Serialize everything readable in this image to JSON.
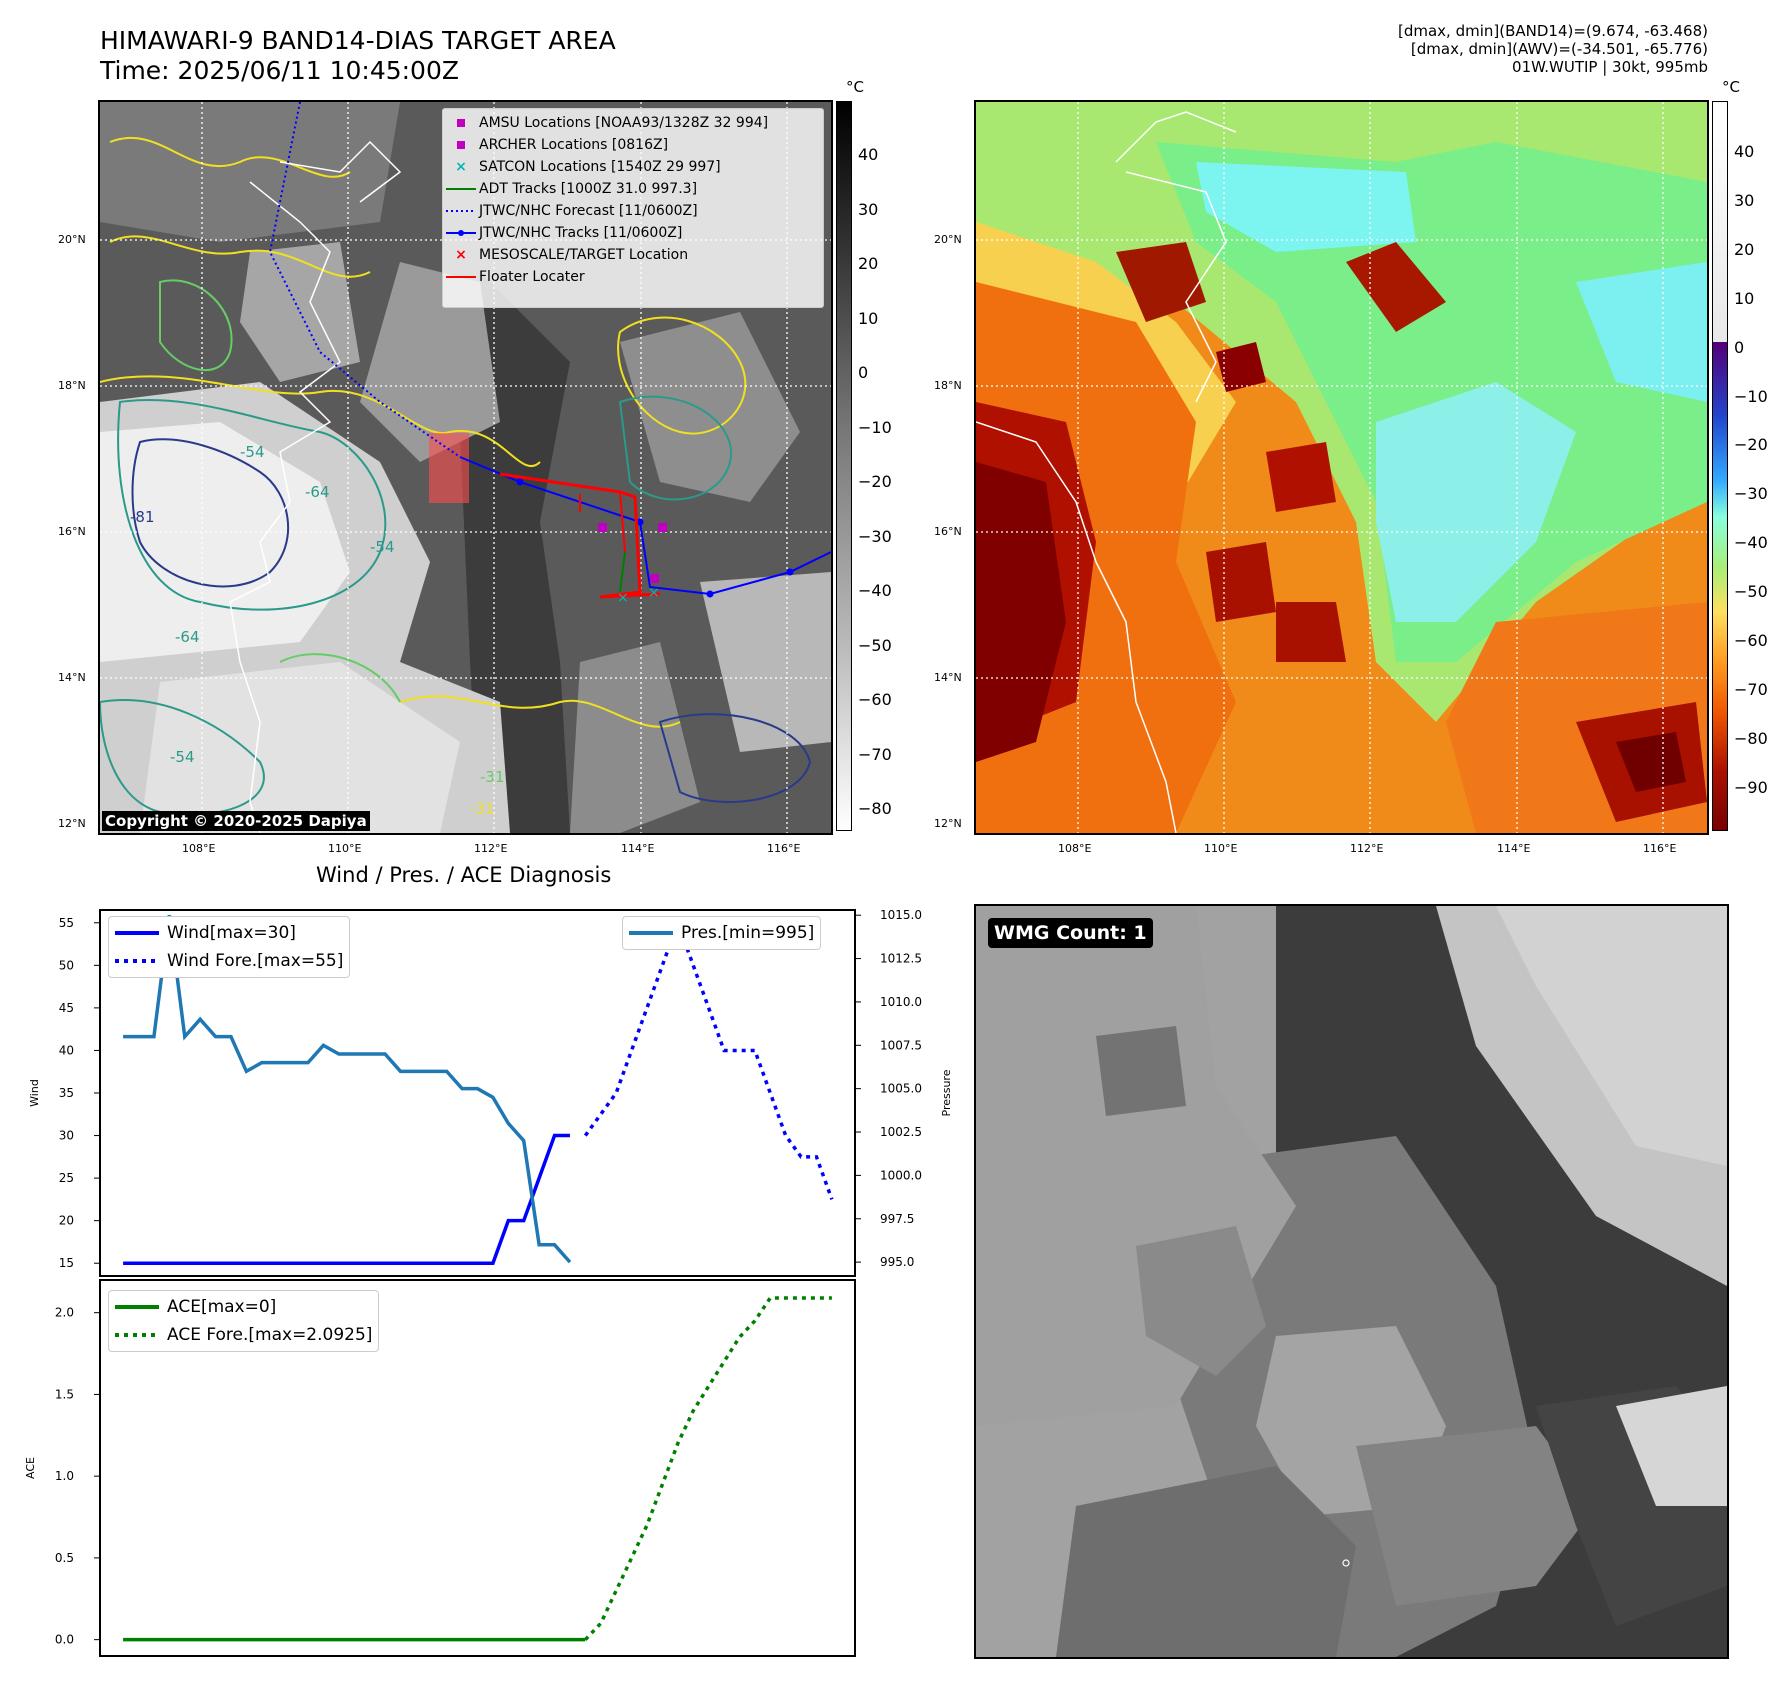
{
  "header": {
    "title": "HIMAWARI-9 BAND14-DIAS TARGET AREA",
    "time": "Time: 2025/06/11 10:45:00Z",
    "info_line1": "[dmax, dmin](BAND14)=(9.674, -63.468)",
    "info_line2": "[dmax, dmin](AWV)=(-34.501, -65.776)",
    "info_line3": "01W.WUTIP | 30kt, 995mb"
  },
  "map_left": {
    "lat_labels": [
      "20°N",
      "18°N",
      "16°N",
      "14°N",
      "12°N"
    ],
    "lon_labels": [
      "108°E",
      "110°E",
      "112°E",
      "114°E",
      "116°E"
    ],
    "copyright": "Copyright © 2020-2025 Dapiya",
    "colorbar_unit": "°C",
    "colorbar_ticks": [
      "40",
      "30",
      "20",
      "10",
      "0",
      "−10",
      "−20",
      "−30",
      "−40",
      "−50",
      "−60",
      "−70",
      "−80"
    ],
    "contour_labels": [
      "-54",
      "-81",
      "-64",
      "-54",
      "-64",
      "-31",
      "-54",
      "-31"
    ],
    "legend": [
      {
        "label": "AMSU Locations [NOAA93/1328Z 32 994]",
        "marker": "square",
        "color": "#c000c0"
      },
      {
        "label": "ARCHER Locations [0816Z]",
        "marker": "square",
        "color": "#c000c0"
      },
      {
        "label": "SATCON Locations [1540Z 29 997]",
        "marker": "x",
        "color": "#00b8b8"
      },
      {
        "label": "ADT Tracks [1000Z 31.0 997.3]",
        "marker": "line",
        "color": "#008000"
      },
      {
        "label": "JTWC/NHC Forecast [11/0600Z]",
        "marker": "dotted",
        "color": "#0000ff"
      },
      {
        "label": "JTWC/NHC Tracks [11/0600Z]",
        "marker": "line-dot",
        "color": "#0000ff"
      },
      {
        "label": "MESOSCALE/TARGET Location",
        "marker": "x",
        "color": "#ff0000"
      },
      {
        "label": "Floater Locater",
        "marker": "line",
        "color": "#ff0000"
      }
    ]
  },
  "map_right": {
    "lat_labels": [
      "20°N",
      "18°N",
      "16°N",
      "14°N",
      "12°N"
    ],
    "lon_labels": [
      "108°E",
      "110°E",
      "112°E",
      "114°E",
      "116°E"
    ],
    "colorbar_unit": "°C",
    "colorbar_ticks": [
      "40",
      "30",
      "20",
      "10",
      "0",
      "−10",
      "−20",
      "−30",
      "−40",
      "−50",
      "−60",
      "−70",
      "−80",
      "−90"
    ]
  },
  "diagnosis_title": "Wind / Pres. / ACE Diagnosis",
  "wmg_label": "WMG Count: 1",
  "colors": {
    "wind": "#0000ff",
    "pressure": "#1f77b4",
    "ace": "#008000"
  },
  "chart_data": [
    {
      "type": "line",
      "ylabel": "Wind",
      "y2label": "Pressure",
      "ylim": [
        13.5,
        56.5
      ],
      "y2lim": [
        994.2,
        1015.3
      ],
      "yticks": [
        15,
        20,
        25,
        30,
        35,
        40,
        45,
        50,
        55
      ],
      "y2ticks": [
        "995.0",
        "997.5",
        "1000.0",
        "1002.5",
        "1005.0",
        "1007.5",
        "1010.0",
        "1012.5",
        "1015.0"
      ],
      "xlim": [
        -1.5,
        47.5
      ],
      "legend_left": [
        "Wind[max=30]",
        "Wind Fore.[max=55]"
      ],
      "legend_right": [
        "Pres.[min=995]"
      ],
      "series": [
        {
          "name": "Wind[max=30]",
          "axis": "left",
          "x": [
            0,
            1,
            2,
            3,
            4,
            5,
            6,
            7,
            8,
            9,
            10,
            11,
            12,
            13,
            14,
            15,
            16,
            17,
            18,
            19,
            20,
            21,
            22,
            23,
            24,
            25,
            26,
            27,
            28,
            29
          ],
          "values": [
            15,
            15,
            15,
            15,
            15,
            15,
            15,
            15,
            15,
            15,
            15,
            15,
            15,
            15,
            15,
            15,
            15,
            15,
            15,
            15,
            15,
            15,
            15,
            15,
            15,
            20,
            20,
            25,
            30,
            30
          ]
        },
        {
          "name": "Wind Fore.[max=55]",
          "axis": "left",
          "x": [
            30,
            31,
            32,
            33,
            34,
            35,
            36,
            37,
            38,
            39,
            40,
            41,
            42,
            43,
            44,
            45,
            46
          ],
          "values": [
            30,
            32.5,
            35,
            40,
            45,
            50,
            55,
            50,
            45,
            40,
            40,
            40,
            35,
            30,
            27.5,
            27.5,
            22.5
          ]
        },
        {
          "name": "Pres.[min=995]",
          "axis": "right",
          "x": [
            0,
            1,
            2,
            3,
            4,
            5,
            6,
            7,
            8,
            9,
            10,
            11,
            12,
            13,
            14,
            15,
            16,
            17,
            18,
            19,
            20,
            21,
            22,
            23,
            24,
            25,
            26,
            27,
            28,
            29
          ],
          "values": [
            1008,
            1008,
            1008,
            1015,
            1008,
            1009,
            1008,
            1008,
            1006,
            1006.5,
            1006.5,
            1006.5,
            1006.5,
            1007.5,
            1007,
            1007,
            1007,
            1007,
            1006,
            1006,
            1006,
            1006,
            1005,
            1005,
            1004.5,
            1003,
            1002,
            996,
            996,
            995
          ]
        }
      ]
    },
    {
      "type": "line",
      "ylabel": "ACE",
      "ylim": [
        -0.1,
        2.2
      ],
      "yticks": [
        "0.0",
        "0.5",
        "1.0",
        "1.5",
        "2.0"
      ],
      "xlim": [
        -1.5,
        47.5
      ],
      "series": [
        {
          "name": "ACE[max=0]",
          "x": [
            0,
            30
          ],
          "values": [
            0,
            0
          ]
        },
        {
          "name": "ACE Fore.[max=2.0925]",
          "x": [
            30,
            31,
            32,
            33,
            34,
            35,
            36,
            37,
            38,
            39,
            40,
            41,
            42,
            43,
            44,
            45,
            46
          ],
          "values": [
            0,
            0.1,
            0.3,
            0.5,
            0.7,
            0.95,
            1.2,
            1.4,
            1.55,
            1.7,
            1.85,
            1.95,
            2.09,
            2.09,
            2.09,
            2.09,
            2.09
          ]
        }
      ]
    }
  ]
}
